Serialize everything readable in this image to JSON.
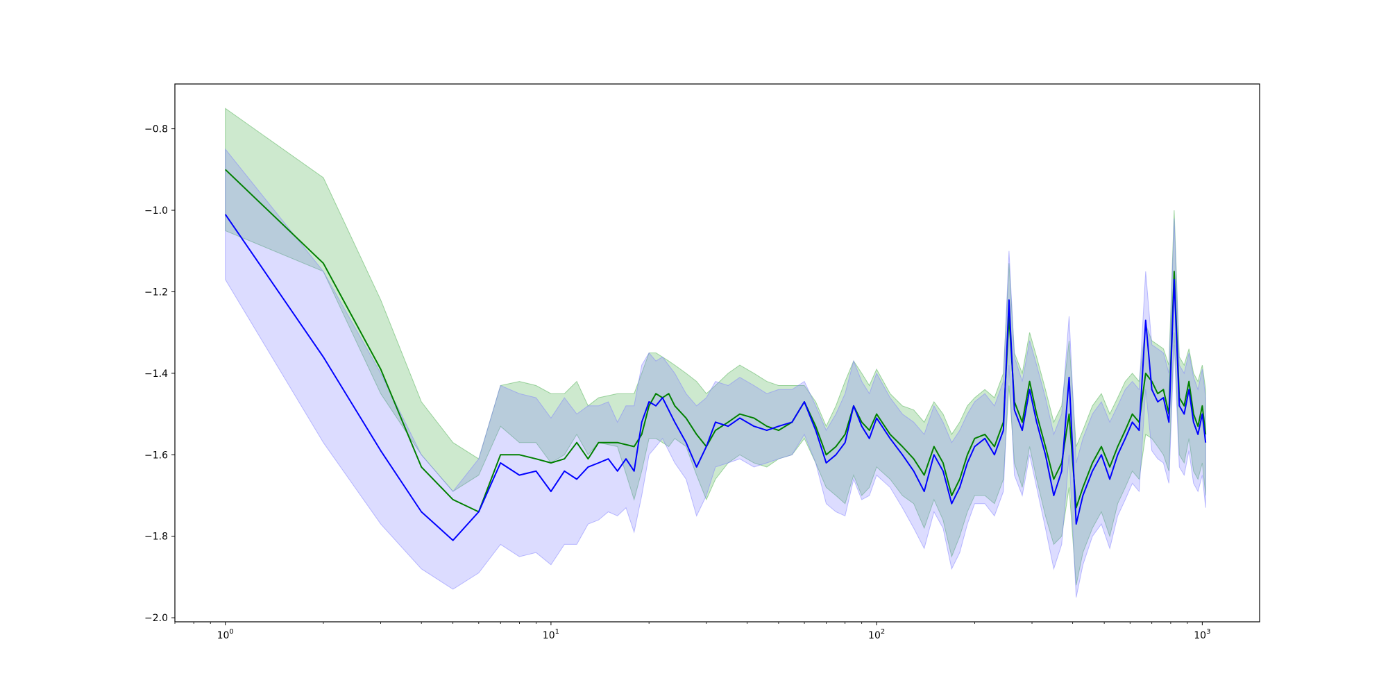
{
  "chart_data": {
    "type": "line",
    "title": "",
    "xlabel": "",
    "ylabel": "",
    "xscale": "log",
    "xlim": [
      0.7,
      1500
    ],
    "ylim": [
      -2.01,
      -0.69
    ],
    "grid": false,
    "legend": "none",
    "x_ticks": [
      {
        "value": 1,
        "base": "10",
        "exp": "0"
      },
      {
        "value": 10,
        "base": "10",
        "exp": "1"
      },
      {
        "value": 100,
        "base": "10",
        "exp": "2"
      },
      {
        "value": 1000,
        "base": "10",
        "exp": "3"
      }
    ],
    "y_ticks": [
      {
        "value": -0.8,
        "label": "−0.8"
      },
      {
        "value": -1.0,
        "label": "−1.0"
      },
      {
        "value": -1.2,
        "label": "−1.2"
      },
      {
        "value": -1.4,
        "label": "−1.4"
      },
      {
        "value": -1.6,
        "label": "−1.6"
      },
      {
        "value": -1.8,
        "label": "−1.8"
      },
      {
        "value": -2.0,
        "label": "−2.0"
      }
    ],
    "series": [
      {
        "color": "#008000",
        "band_color": "#4caf50",
        "points": [
          [
            1,
            -0.9,
            -1.05,
            -0.75
          ],
          [
            2,
            -1.13,
            -1.15,
            -0.92
          ],
          [
            3,
            -1.39,
            -1.45,
            -1.22
          ],
          [
            4,
            -1.63,
            -1.6,
            -1.47
          ],
          [
            5,
            -1.71,
            -1.69,
            -1.57
          ],
          [
            6,
            -1.74,
            -1.65,
            -1.61
          ],
          [
            7,
            -1.6,
            -1.53,
            -1.43
          ],
          [
            8,
            -1.6,
            -1.57,
            -1.42
          ],
          [
            9,
            -1.61,
            -1.57,
            -1.43
          ],
          [
            10,
            -1.62,
            -1.62,
            -1.45
          ],
          [
            11,
            -1.61,
            -1.6,
            -1.45
          ],
          [
            12,
            -1.57,
            -1.55,
            -1.42
          ],
          [
            13,
            -1.61,
            -1.6,
            -1.48
          ],
          [
            14,
            -1.57,
            -1.57,
            -1.46
          ],
          [
            16,
            -1.57,
            -1.58,
            -1.45
          ],
          [
            18,
            -1.58,
            -1.71,
            -1.45
          ],
          [
            19,
            -1.55,
            -1.64,
            -1.4
          ],
          [
            20,
            -1.48,
            -1.56,
            -1.35
          ],
          [
            21,
            -1.45,
            -1.56,
            -1.35
          ],
          [
            22,
            -1.46,
            -1.57,
            -1.36
          ],
          [
            23,
            -1.45,
            -1.58,
            -1.37
          ],
          [
            24,
            -1.48,
            -1.56,
            -1.38
          ],
          [
            26,
            -1.51,
            -1.58,
            -1.4
          ],
          [
            28,
            -1.55,
            -1.65,
            -1.42
          ],
          [
            30,
            -1.58,
            -1.71,
            -1.45
          ],
          [
            32,
            -1.54,
            -1.66,
            -1.43
          ],
          [
            35,
            -1.52,
            -1.62,
            -1.4
          ],
          [
            38,
            -1.5,
            -1.6,
            -1.38
          ],
          [
            42,
            -1.51,
            -1.62,
            -1.4
          ],
          [
            46,
            -1.53,
            -1.63,
            -1.42
          ],
          [
            50,
            -1.54,
            -1.61,
            -1.43
          ],
          [
            55,
            -1.52,
            -1.6,
            -1.43
          ],
          [
            60,
            -1.47,
            -1.56,
            -1.43
          ],
          [
            65,
            -1.53,
            -1.62,
            -1.47
          ],
          [
            70,
            -1.6,
            -1.68,
            -1.53
          ],
          [
            75,
            -1.58,
            -1.7,
            -1.48
          ],
          [
            80,
            -1.55,
            -1.72,
            -1.42
          ],
          [
            85,
            -1.48,
            -1.65,
            -1.37
          ],
          [
            90,
            -1.52,
            -1.7,
            -1.4
          ],
          [
            95,
            -1.54,
            -1.68,
            -1.43
          ],
          [
            100,
            -1.5,
            -1.63,
            -1.39
          ],
          [
            110,
            -1.55,
            -1.66,
            -1.45
          ],
          [
            120,
            -1.58,
            -1.7,
            -1.48
          ],
          [
            130,
            -1.61,
            -1.72,
            -1.49
          ],
          [
            140,
            -1.65,
            -1.78,
            -1.52
          ],
          [
            150,
            -1.58,
            -1.71,
            -1.47
          ],
          [
            160,
            -1.62,
            -1.76,
            -1.5
          ],
          [
            170,
            -1.7,
            -1.85,
            -1.55
          ],
          [
            180,
            -1.66,
            -1.8,
            -1.52
          ],
          [
            190,
            -1.6,
            -1.74,
            -1.48
          ],
          [
            200,
            -1.56,
            -1.7,
            -1.46
          ],
          [
            215,
            -1.55,
            -1.7,
            -1.44
          ],
          [
            230,
            -1.58,
            -1.72,
            -1.46
          ],
          [
            245,
            -1.52,
            -1.66,
            -1.4
          ],
          [
            255,
            -1.26,
            -1.43,
            -1.13
          ],
          [
            265,
            -1.47,
            -1.62,
            -1.35
          ],
          [
            280,
            -1.52,
            -1.68,
            -1.4
          ],
          [
            295,
            -1.42,
            -1.58,
            -1.3
          ],
          [
            310,
            -1.5,
            -1.66,
            -1.36
          ],
          [
            330,
            -1.58,
            -1.75,
            -1.44
          ],
          [
            350,
            -1.66,
            -1.82,
            -1.52
          ],
          [
            370,
            -1.62,
            -1.8,
            -1.48
          ],
          [
            390,
            -1.5,
            -1.68,
            -1.32
          ],
          [
            410,
            -1.73,
            -1.92,
            -1.58
          ],
          [
            430,
            -1.68,
            -1.84,
            -1.54
          ],
          [
            460,
            -1.62,
            -1.78,
            -1.48
          ],
          [
            490,
            -1.58,
            -1.74,
            -1.45
          ],
          [
            520,
            -1.63,
            -1.8,
            -1.5
          ],
          [
            550,
            -1.58,
            -1.72,
            -1.46
          ],
          [
            580,
            -1.54,
            -1.68,
            -1.42
          ],
          [
            610,
            -1.5,
            -1.64,
            -1.4
          ],
          [
            640,
            -1.52,
            -1.66,
            -1.42
          ],
          [
            670,
            -1.4,
            -1.55,
            -1.28
          ],
          [
            700,
            -1.42,
            -1.56,
            -1.32
          ],
          [
            730,
            -1.45,
            -1.58,
            -1.33
          ],
          [
            760,
            -1.44,
            -1.6,
            -1.34
          ],
          [
            790,
            -1.5,
            -1.64,
            -1.38
          ],
          [
            820,
            -1.15,
            -1.3,
            -1.0
          ],
          [
            850,
            -1.46,
            -1.6,
            -1.36
          ],
          [
            880,
            -1.48,
            -1.62,
            -1.38
          ],
          [
            910,
            -1.42,
            -1.56,
            -1.34
          ],
          [
            940,
            -1.5,
            -1.64,
            -1.4
          ],
          [
            970,
            -1.53,
            -1.66,
            -1.42
          ],
          [
            1000,
            -1.48,
            -1.62,
            -1.38
          ],
          [
            1024,
            -1.55,
            -1.7,
            -1.44
          ]
        ]
      },
      {
        "color": "#0000ff",
        "band_color": "#8080ff",
        "points": [
          [
            1,
            -1.01,
            -1.17,
            -0.85
          ],
          [
            2,
            -1.36,
            -1.57,
            -1.15
          ],
          [
            3,
            -1.59,
            -1.77,
            -1.4
          ],
          [
            4,
            -1.74,
            -1.88,
            -1.6
          ],
          [
            5,
            -1.81,
            -1.93,
            -1.69
          ],
          [
            6,
            -1.74,
            -1.89,
            -1.61
          ],
          [
            7,
            -1.62,
            -1.82,
            -1.43
          ],
          [
            8,
            -1.65,
            -1.85,
            -1.45
          ],
          [
            9,
            -1.64,
            -1.84,
            -1.46
          ],
          [
            10,
            -1.69,
            -1.87,
            -1.51
          ],
          [
            11,
            -1.64,
            -1.82,
            -1.46
          ],
          [
            12,
            -1.66,
            -1.82,
            -1.5
          ],
          [
            13,
            -1.63,
            -1.77,
            -1.48
          ],
          [
            14,
            -1.62,
            -1.76,
            -1.48
          ],
          [
            15,
            -1.61,
            -1.74,
            -1.47
          ],
          [
            16,
            -1.64,
            -1.75,
            -1.52
          ],
          [
            17,
            -1.61,
            -1.73,
            -1.48
          ],
          [
            18,
            -1.64,
            -1.79,
            -1.48
          ],
          [
            19,
            -1.52,
            -1.7,
            -1.38
          ],
          [
            20,
            -1.47,
            -1.6,
            -1.35
          ],
          [
            21,
            -1.48,
            -1.58,
            -1.37
          ],
          [
            22,
            -1.46,
            -1.56,
            -1.36
          ],
          [
            24,
            -1.52,
            -1.62,
            -1.4
          ],
          [
            26,
            -1.57,
            -1.66,
            -1.45
          ],
          [
            28,
            -1.63,
            -1.75,
            -1.48
          ],
          [
            30,
            -1.58,
            -1.7,
            -1.46
          ],
          [
            32,
            -1.52,
            -1.63,
            -1.42
          ],
          [
            35,
            -1.53,
            -1.62,
            -1.43
          ],
          [
            38,
            -1.51,
            -1.61,
            -1.41
          ],
          [
            42,
            -1.53,
            -1.63,
            -1.43
          ],
          [
            46,
            -1.54,
            -1.62,
            -1.45
          ],
          [
            50,
            -1.53,
            -1.61,
            -1.44
          ],
          [
            55,
            -1.52,
            -1.6,
            -1.44
          ],
          [
            60,
            -1.47,
            -1.55,
            -1.42
          ],
          [
            65,
            -1.54,
            -1.62,
            -1.48
          ],
          [
            70,
            -1.62,
            -1.72,
            -1.54
          ],
          [
            75,
            -1.6,
            -1.74,
            -1.5
          ],
          [
            80,
            -1.57,
            -1.75,
            -1.45
          ],
          [
            85,
            -1.48,
            -1.66,
            -1.37
          ],
          [
            90,
            -1.53,
            -1.71,
            -1.42
          ],
          [
            95,
            -1.56,
            -1.7,
            -1.45
          ],
          [
            100,
            -1.51,
            -1.65,
            -1.4
          ],
          [
            110,
            -1.56,
            -1.68,
            -1.46
          ],
          [
            120,
            -1.6,
            -1.73,
            -1.5
          ],
          [
            130,
            -1.64,
            -1.78,
            -1.52
          ],
          [
            140,
            -1.69,
            -1.83,
            -1.55
          ],
          [
            150,
            -1.6,
            -1.74,
            -1.48
          ],
          [
            160,
            -1.64,
            -1.78,
            -1.52
          ],
          [
            170,
            -1.72,
            -1.88,
            -1.57
          ],
          [
            180,
            -1.68,
            -1.84,
            -1.54
          ],
          [
            190,
            -1.62,
            -1.77,
            -1.5
          ],
          [
            200,
            -1.58,
            -1.72,
            -1.47
          ],
          [
            215,
            -1.56,
            -1.72,
            -1.45
          ],
          [
            230,
            -1.6,
            -1.75,
            -1.48
          ],
          [
            245,
            -1.54,
            -1.69,
            -1.42
          ],
          [
            255,
            -1.22,
            -1.38,
            -1.1
          ],
          [
            265,
            -1.49,
            -1.65,
            -1.36
          ],
          [
            280,
            -1.54,
            -1.7,
            -1.42
          ],
          [
            295,
            -1.44,
            -1.6,
            -1.32
          ],
          [
            310,
            -1.52,
            -1.68,
            -1.38
          ],
          [
            330,
            -1.6,
            -1.78,
            -1.46
          ],
          [
            350,
            -1.7,
            -1.88,
            -1.55
          ],
          [
            370,
            -1.64,
            -1.82,
            -1.5
          ],
          [
            390,
            -1.41,
            -1.6,
            -1.26
          ],
          [
            410,
            -1.77,
            -1.95,
            -1.62
          ],
          [
            430,
            -1.7,
            -1.87,
            -1.56
          ],
          [
            460,
            -1.64,
            -1.8,
            -1.5
          ],
          [
            490,
            -1.6,
            -1.77,
            -1.47
          ],
          [
            520,
            -1.66,
            -1.83,
            -1.52
          ],
          [
            550,
            -1.6,
            -1.75,
            -1.48
          ],
          [
            580,
            -1.56,
            -1.71,
            -1.44
          ],
          [
            610,
            -1.52,
            -1.67,
            -1.42
          ],
          [
            640,
            -1.54,
            -1.69,
            -1.44
          ],
          [
            670,
            -1.27,
            -1.44,
            -1.15
          ],
          [
            700,
            -1.44,
            -1.59,
            -1.33
          ],
          [
            730,
            -1.47,
            -1.61,
            -1.34
          ],
          [
            760,
            -1.46,
            -1.62,
            -1.35
          ],
          [
            790,
            -1.52,
            -1.67,
            -1.4
          ],
          [
            820,
            -1.17,
            -1.33,
            -1.02
          ],
          [
            850,
            -1.48,
            -1.63,
            -1.38
          ],
          [
            880,
            -1.5,
            -1.65,
            -1.4
          ],
          [
            910,
            -1.44,
            -1.59,
            -1.35
          ],
          [
            940,
            -1.52,
            -1.67,
            -1.41
          ],
          [
            970,
            -1.55,
            -1.69,
            -1.44
          ],
          [
            1000,
            -1.5,
            -1.65,
            -1.39
          ],
          [
            1024,
            -1.57,
            -1.73,
            -1.46
          ]
        ]
      }
    ]
  }
}
